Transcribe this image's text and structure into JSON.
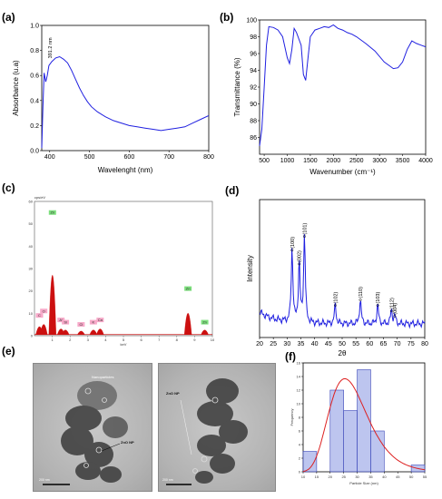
{
  "panels": {
    "a": "(a)",
    "b": "(b)",
    "c": "(c)",
    "d": "(d)",
    "e": "(e)",
    "f": "(f)"
  },
  "chart_data": [
    {
      "id": "a",
      "type": "line",
      "xlabel": "Wavelenght (nm)",
      "ylabel": "Absorbance (u.a)",
      "xlim": [
        380,
        800
      ],
      "ylim": [
        0,
        1.0
      ],
      "xticks": [
        400,
        500,
        600,
        700,
        800
      ],
      "yticks": [
        0.0,
        0.2,
        0.4,
        0.6,
        0.8,
        1.0
      ],
      "color": "#2020e0",
      "annotation": "391.2 nm",
      "x": [
        380,
        383,
        386,
        390,
        394,
        398,
        405,
        415,
        425,
        435,
        445,
        455,
        465,
        475,
        485,
        495,
        505,
        520,
        540,
        560,
        580,
        600,
        620,
        640,
        660,
        680,
        700,
        720,
        740,
        760,
        780,
        800
      ],
      "y": [
        0.02,
        0.35,
        0.62,
        0.55,
        0.6,
        0.68,
        0.71,
        0.74,
        0.75,
        0.73,
        0.7,
        0.64,
        0.57,
        0.5,
        0.44,
        0.39,
        0.35,
        0.31,
        0.27,
        0.24,
        0.22,
        0.2,
        0.19,
        0.18,
        0.17,
        0.16,
        0.17,
        0.18,
        0.19,
        0.22,
        0.25,
        0.28
      ]
    },
    {
      "id": "b",
      "type": "line",
      "xlabel": "Wavenumber (cm⁻¹)",
      "ylabel": "Transmittance (%)",
      "xlim": [
        400,
        4000
      ],
      "ylim": [
        84,
        100
      ],
      "xticks": [
        500,
        1000,
        1500,
        2000,
        2500,
        3000,
        3500,
        4000
      ],
      "yticks": [
        86,
        88,
        90,
        92,
        94,
        96,
        98,
        100
      ],
      "color": "#2020e0",
      "x": [
        400,
        450,
        500,
        550,
        600,
        700,
        800,
        900,
        1000,
        1050,
        1100,
        1150,
        1200,
        1300,
        1350,
        1400,
        1450,
        1500,
        1600,
        1700,
        1800,
        1900,
        2000,
        2100,
        2200,
        2300,
        2400,
        2500,
        2700,
        2900,
        3100,
        3300,
        3400,
        3500,
        3600,
        3700,
        3800,
        3900,
        4000
      ],
      "y": [
        85,
        87,
        92,
        97,
        99.2,
        99.1,
        98.8,
        98,
        95.5,
        94.8,
        96.5,
        99,
        98.5,
        97,
        93.5,
        92.8,
        95.5,
        98,
        98.8,
        99,
        99.2,
        99.1,
        99.4,
        99,
        98.8,
        98.5,
        98.3,
        98,
        97.2,
        96.3,
        95,
        94.2,
        94.3,
        95,
        96.5,
        97.5,
        97.2,
        97,
        96.8
      ]
    },
    {
      "id": "c",
      "type": "bar",
      "xlabel": "keV",
      "ylabel": "cps/eV",
      "xlim": [
        0,
        10
      ],
      "ylim": [
        0,
        60
      ],
      "xticks": [
        1,
        2,
        3,
        4,
        5,
        6,
        7,
        8,
        9,
        10
      ],
      "yticks": [
        0,
        10,
        20,
        30,
        40,
        50,
        60
      ],
      "color": "#cc1010",
      "peaks": [
        {
          "x": 0.28,
          "y": 6,
          "label": "C"
        },
        {
          "x": 0.52,
          "y": 8,
          "label": "O"
        },
        {
          "x": 1.01,
          "y": 52,
          "label": "Zn"
        },
        {
          "x": 1.49,
          "y": 4,
          "label": "Al"
        },
        {
          "x": 1.74,
          "y": 3,
          "label": "Si"
        },
        {
          "x": 2.62,
          "y": 2,
          "label": "Cl"
        },
        {
          "x": 3.31,
          "y": 3,
          "label": "K"
        },
        {
          "x": 3.69,
          "y": 4,
          "label": "Ca"
        },
        {
          "x": 8.63,
          "y": 18,
          "label": "Zn"
        },
        {
          "x": 9.57,
          "y": 3,
          "label": "Zn"
        }
      ]
    },
    {
      "id": "d",
      "type": "line",
      "xlabel": "2θ",
      "ylabel": "Intensity",
      "xlim": [
        20,
        80
      ],
      "ylim": [
        0,
        100
      ],
      "xticks": [
        20,
        25,
        30,
        35,
        40,
        45,
        50,
        55,
        60,
        65,
        70,
        75,
        80
      ],
      "color": "#2020e0",
      "peaks": [
        {
          "x": 31.8,
          "y": 62,
          "label": "(100)"
        },
        {
          "x": 34.4,
          "y": 52,
          "label": "(002)"
        },
        {
          "x": 36.3,
          "y": 72,
          "label": "(101)"
        },
        {
          "x": 47.5,
          "y": 22,
          "label": "(102)"
        },
        {
          "x": 56.6,
          "y": 26,
          "label": "(110)"
        },
        {
          "x": 62.9,
          "y": 22,
          "label": "(103)"
        },
        {
          "x": 67.9,
          "y": 18,
          "label": "(112)"
        },
        {
          "x": 69.1,
          "y": 14,
          "label": "(004)"
        }
      ]
    },
    {
      "id": "f",
      "type": "bar",
      "xlabel": "Particle Size (nm)",
      "ylabel": "Frequency",
      "xlim": [
        10,
        55
      ],
      "ylim": [
        0,
        16
      ],
      "xticks": [
        10,
        15,
        20,
        25,
        30,
        35,
        40,
        45,
        50,
        55
      ],
      "yticks": [
        0,
        2,
        4,
        6,
        8,
        10,
        12,
        14,
        16
      ],
      "bins": [
        [
          10,
          15
        ],
        [
          20,
          25
        ],
        [
          25,
          30
        ],
        [
          30,
          35
        ],
        [
          35,
          40
        ],
        [
          50,
          55
        ]
      ],
      "values": [
        3,
        12,
        9,
        15,
        6,
        1
      ],
      "fit_color": "#dd2020",
      "bar_color": "#9aa6e6"
    }
  ],
  "tem": {
    "left_labels": [
      "Nanoparticles",
      "ZnO NP",
      "200 nm"
    ],
    "right_labels": [
      "ZnO NP",
      "200 nm"
    ]
  }
}
